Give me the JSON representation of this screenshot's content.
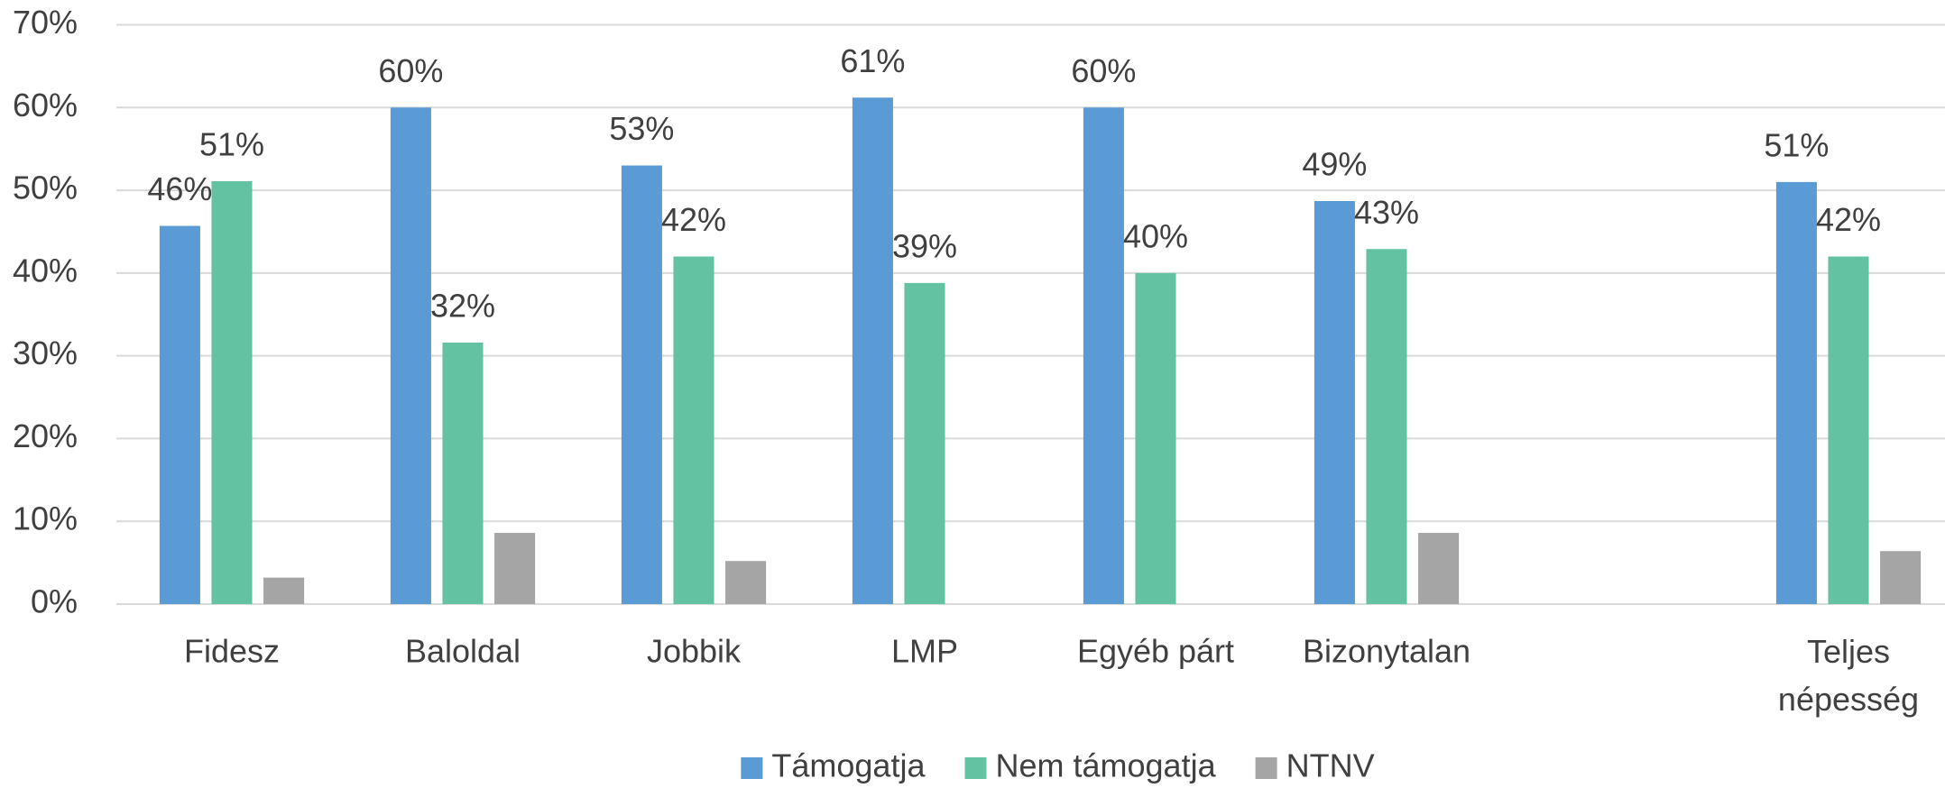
{
  "chart_data": {
    "type": "bar",
    "categories": [
      "Fidesz",
      "Baloldal",
      "Jobbik",
      "LMP",
      "Egyéb párt",
      "Bizonytalan",
      null,
      "Teljes népesség"
    ],
    "series": [
      {
        "name": "Támogatja",
        "color": "#5b9bd5",
        "values": [
          45.7,
          60,
          53,
          61.2,
          60,
          48.7,
          null,
          51
        ],
        "value_labels": [
          "46%",
          "60%",
          "53%",
          "61%",
          "60%",
          "49%",
          null,
          "51%"
        ]
      },
      {
        "name": "Nem támogatja",
        "color": "#62c2a2",
        "values": [
          51.1,
          31.6,
          42,
          38.8,
          40,
          42.9,
          null,
          42
        ],
        "value_labels": [
          "51%",
          "32%",
          "42%",
          "39%",
          "40%",
          "43%",
          null,
          "42%"
        ]
      },
      {
        "name": "NTNV",
        "color": "#a5a5a5",
        "values": [
          3.2,
          8.6,
          5.2,
          0,
          0,
          8.6,
          null,
          6.4
        ]
      }
    ],
    "ylim": [
      0,
      70
    ],
    "yticks": [
      {
        "value": 0,
        "label": "0%"
      },
      {
        "value": 10,
        "label": "10%"
      },
      {
        "value": 20,
        "label": "20%"
      },
      {
        "value": 30,
        "label": "30%"
      },
      {
        "value": 40,
        "label": "40%"
      },
      {
        "value": 50,
        "label": "50%"
      },
      {
        "value": 60,
        "label": "60%"
      },
      {
        "value": 70,
        "label": "70%"
      }
    ],
    "grid": true,
    "legend": "bottom"
  }
}
